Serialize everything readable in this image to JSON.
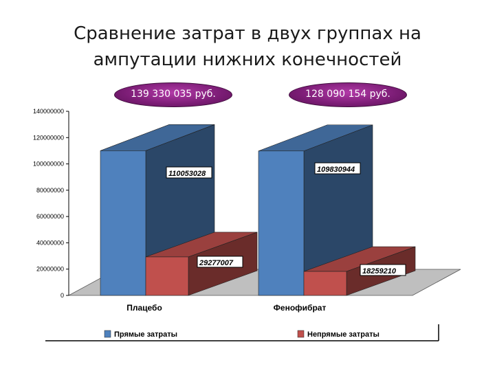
{
  "chart_data": {
    "type": "bar",
    "title": [
      "Сравнение затрат в двух группах на",
      "ампутации нижних конечностей"
    ],
    "categories": [
      "Плацебо",
      "Фенофибрат"
    ],
    "series": [
      {
        "name": "Прямые затраты",
        "values": [
          110053028,
          109830944
        ],
        "color": "#4f81bd"
      },
      {
        "name": "Непрямые затраты",
        "values": [
          29277007,
          18259210
        ],
        "color": "#c0504d"
      }
    ],
    "data_labels": [
      [
        "110053028",
        "109830944"
      ],
      [
        "29277007",
        "18259210"
      ]
    ],
    "totals": [
      "139 330 035 руб.",
      "128 090 154 руб."
    ],
    "yticks": [
      "0",
      "20000000",
      "40000000",
      "60000000",
      "80000000",
      "100000000",
      "120000000",
      "140000000"
    ],
    "ylim": [
      0,
      140000000
    ],
    "legend_position": "bottom",
    "grid": false
  }
}
